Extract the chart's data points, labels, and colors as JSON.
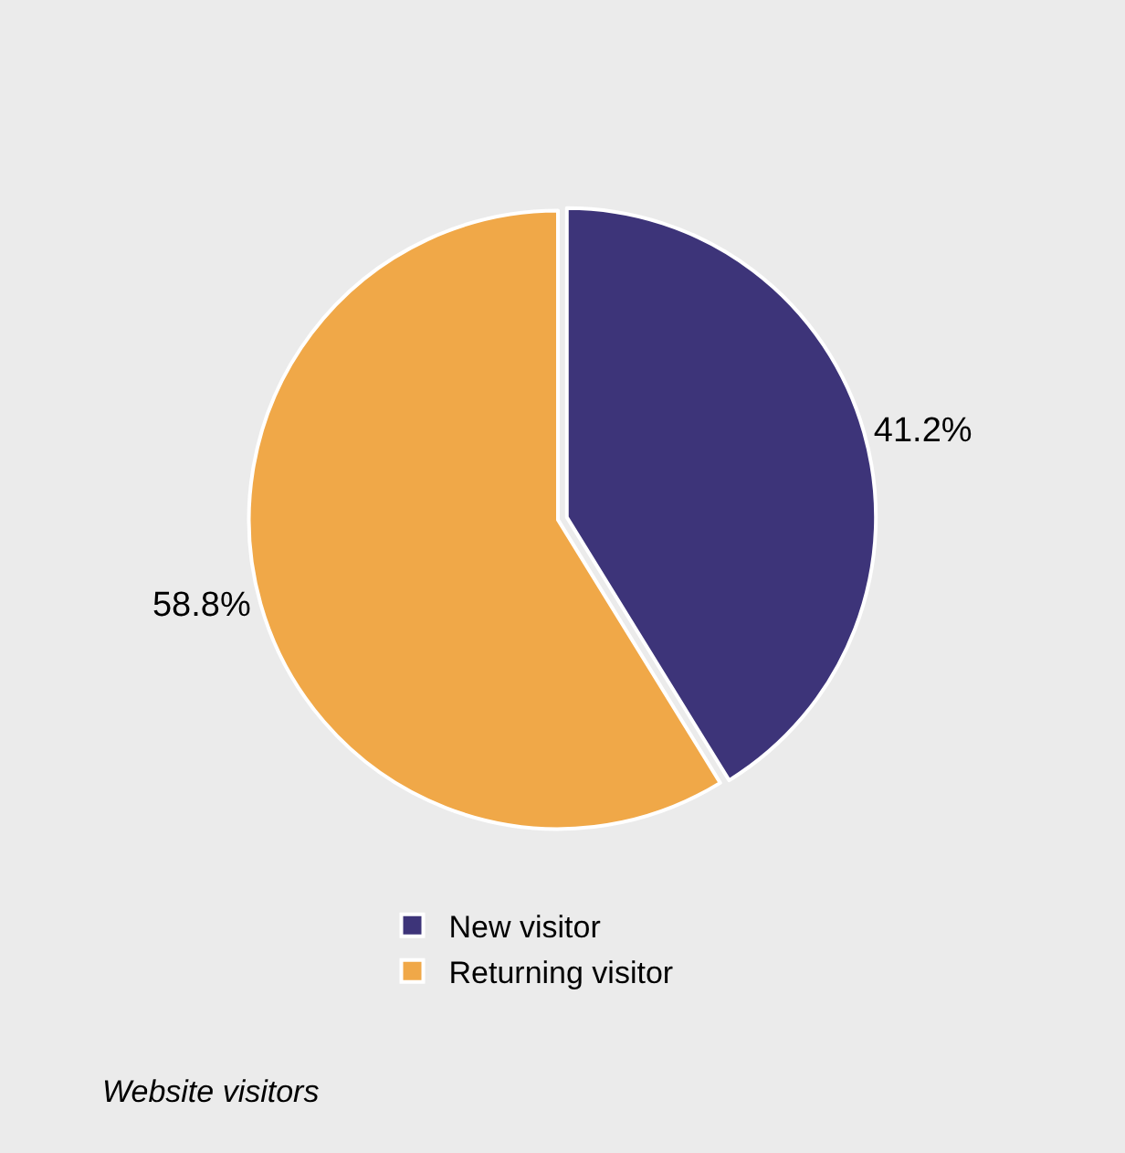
{
  "chart_data": {
    "type": "pie",
    "categories": [
      "New visitor",
      "Returning visitor"
    ],
    "values": [
      41.2,
      58.8
    ],
    "colors": [
      "#3d3479",
      "#f0a848"
    ],
    "value_labels": [
      "41.2%",
      "58.8%"
    ],
    "legend": "bottom",
    "annotations": [
      "Website visitors"
    ]
  }
}
